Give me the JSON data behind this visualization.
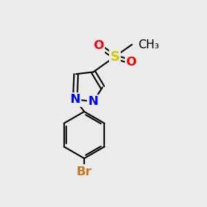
{
  "background_color": "#ebebeb",
  "bond_color": "#000000",
  "bond_width": 1.6,
  "atom_colors": {
    "N": "#0000ff",
    "O": "#ff0000",
    "S": "#cccc00",
    "Br": "#cc7722",
    "C": "#000000"
  },
  "font_size": 13
}
